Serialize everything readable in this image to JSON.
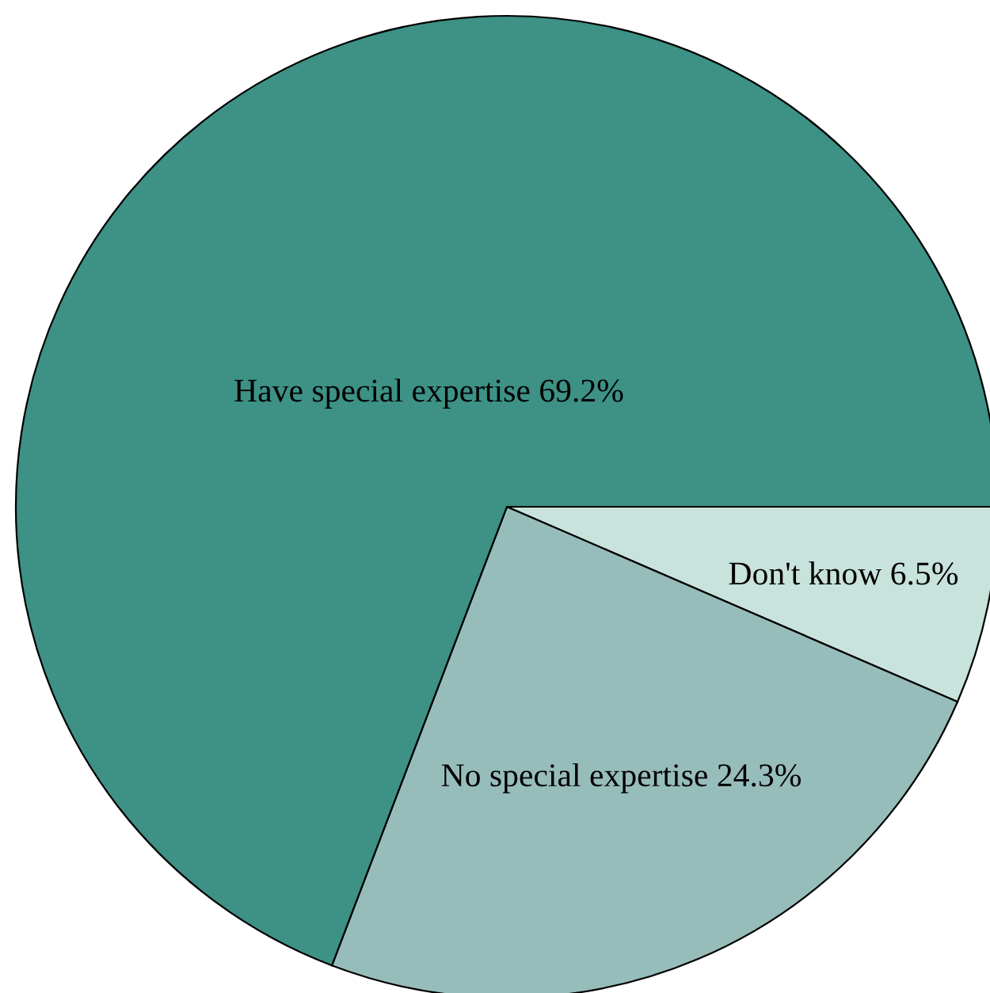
{
  "chart_data": {
    "type": "pie",
    "categories": [
      "Don't know",
      "No special expertise",
      "Have special expertise"
    ],
    "values": [
      6.5,
      24.3,
      69.2
    ],
    "value_labels": [
      "6.5%",
      "24.3%",
      "69.2%"
    ],
    "colors": [
      "#c8e2dc",
      "#97bdbb",
      "#3d9185"
    ]
  }
}
